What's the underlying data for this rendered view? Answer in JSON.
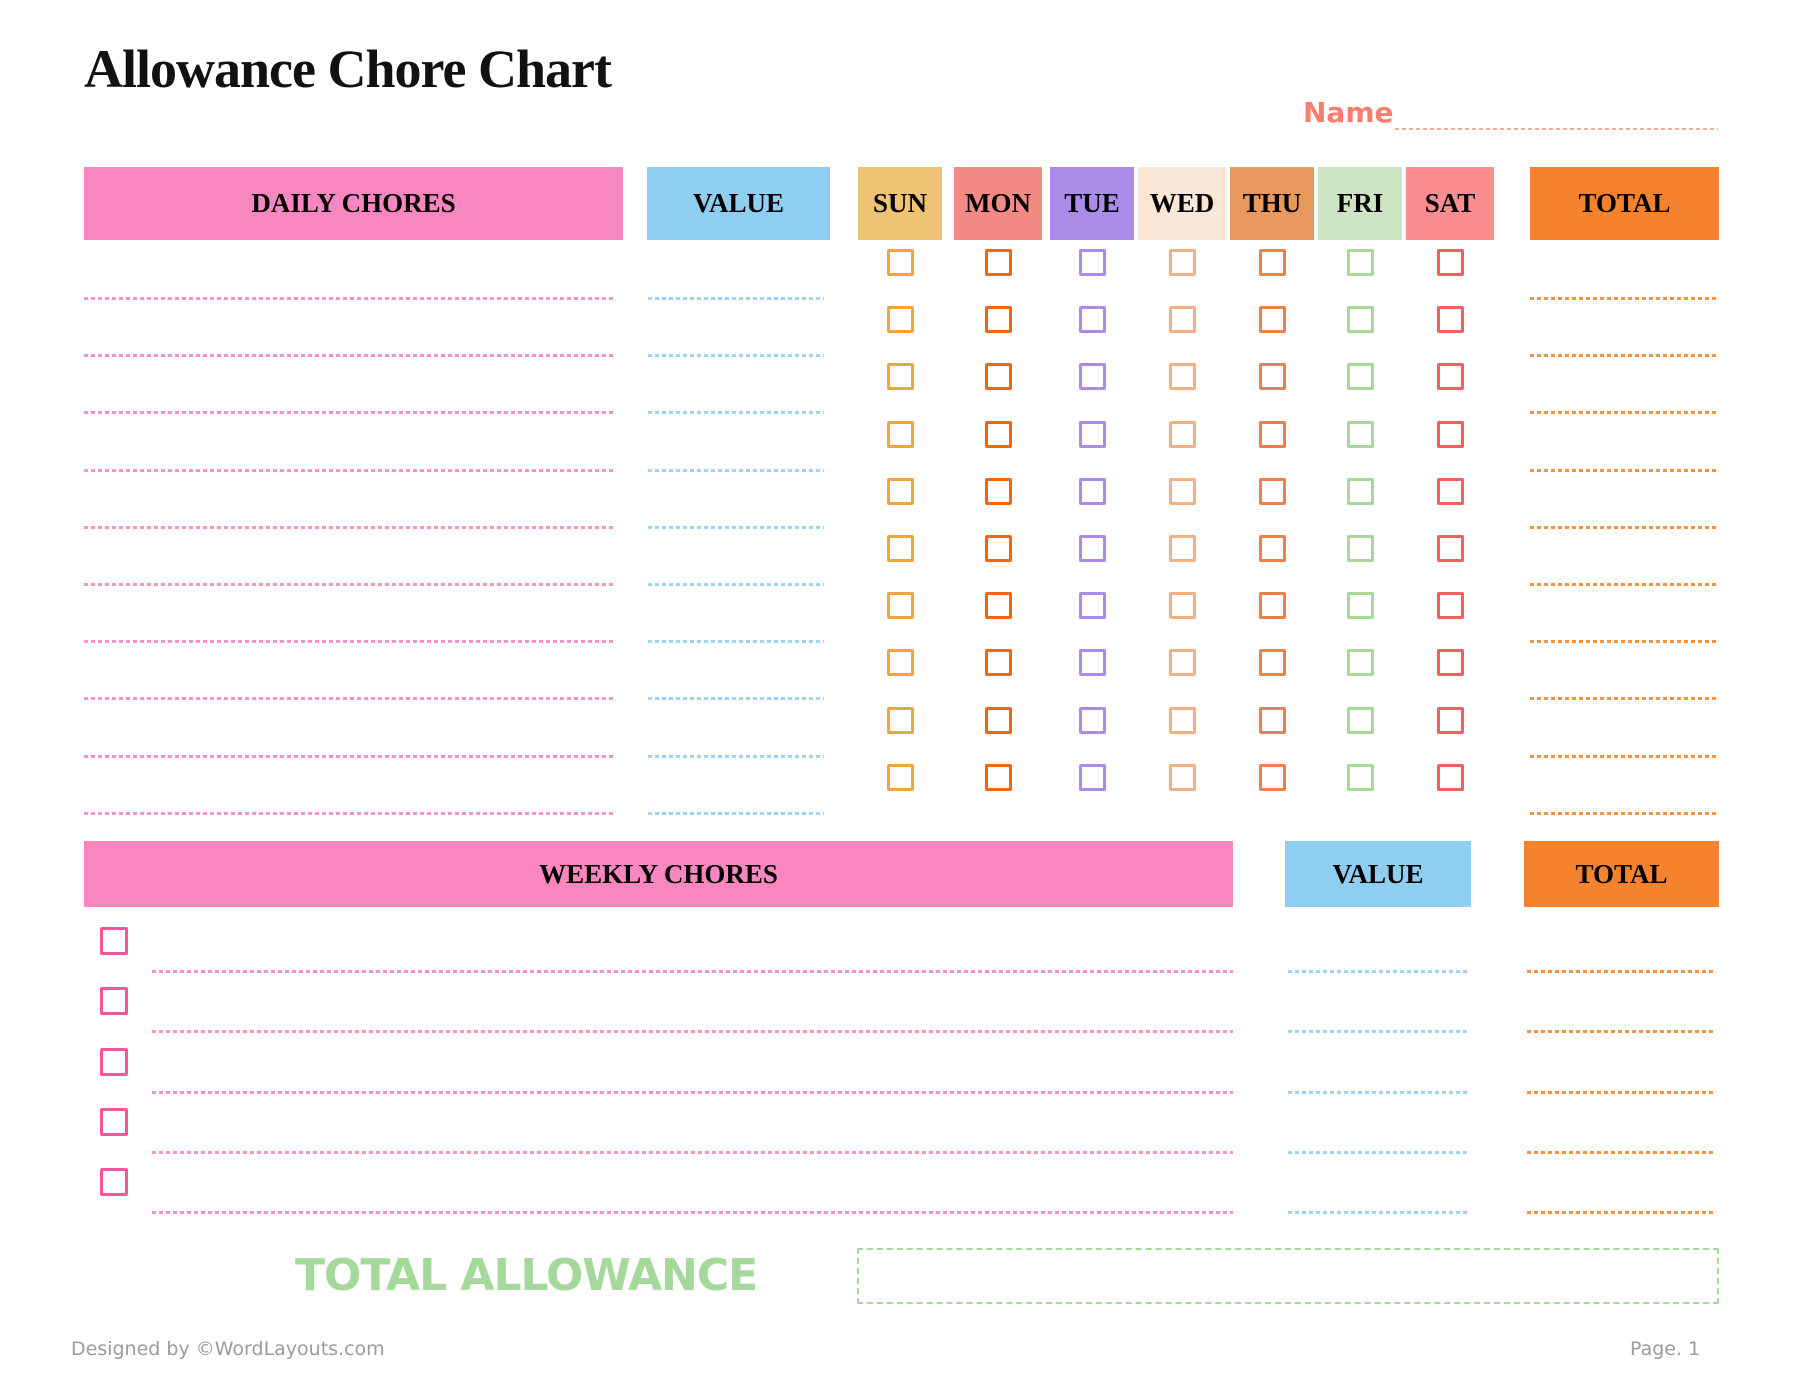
{
  "page": {
    "title": "Allowance Chore Chart",
    "name_label": "Name",
    "footer_left": "Designed by ©WordLayouts.com",
    "footer_right": "Page. 1"
  },
  "daily": {
    "chores_header": "DAILY CHORES",
    "value_header": "VALUE",
    "total_header": "TOTAL",
    "rows": 10,
    "days": [
      {
        "label": "SUN",
        "bg": "#EFC374",
        "box": "#F2A53C"
      },
      {
        "label": "MON",
        "bg": "#F28B84",
        "box": "#F2670D"
      },
      {
        "label": "TUE",
        "bg": "#AB8BE8",
        "box": "#AB8BE8"
      },
      {
        "label": "WED",
        "bg": "#FBE7D8",
        "box": "#F5B183"
      },
      {
        "label": "THU",
        "bg": "#E8995D",
        "box": "#EE8148"
      },
      {
        "label": "FRI",
        "bg": "#CDE5C4",
        "box": "#A8D899"
      },
      {
        "label": "SAT",
        "bg": "#F98D90",
        "box": "#F25F63"
      }
    ]
  },
  "weekly": {
    "chores_header": "WEEKLY CHORES",
    "value_header": "VALUE",
    "total_header": "TOTAL",
    "rows": 5
  },
  "total_allowance": {
    "label": "TOTAL ALLOWANCE"
  },
  "colors": {
    "pink_header": "#F887C0",
    "blue_header": "#8FCEF0",
    "orange_header": "#F5822D",
    "name_accent": "#FA7D6E",
    "name_line": "#FBA89B",
    "daily_chore_line": "#F794C6",
    "value_line": "#9ED4F1",
    "total_line": "#F59440",
    "weekly_checkbox": "#F1569D",
    "green_accent": "#A5D89B",
    "footer_gray": "#9B9B9B"
  }
}
